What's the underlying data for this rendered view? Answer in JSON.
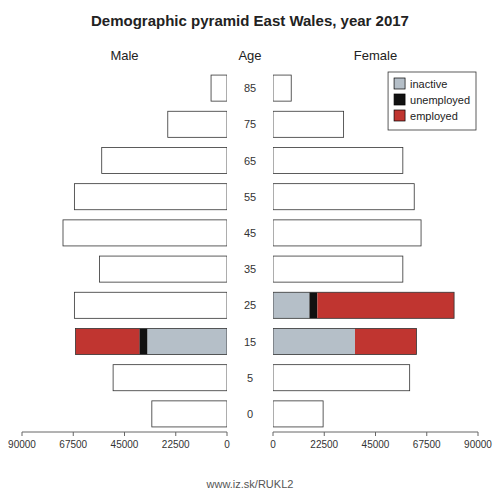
{
  "chart_data": [
    {
      "type": "bar",
      "orientation": "horizontal",
      "stacked": true,
      "title": "Demographic pyramid East Wales, year 2017",
      "subtitle": "Male",
      "ylabel": "Age",
      "annotations": [
        "www.iz.sk/RUKL2"
      ],
      "categories": [
        0,
        5,
        15,
        25,
        35,
        45,
        55,
        65,
        75,
        85
      ],
      "series": [
        {
          "name": "inactive",
          "color": "#b5bfc8",
          "colors": [
            "#ffffff",
            "#ffffff",
            "#b5bfc8",
            "#ffffff",
            "#ffffff",
            "#ffffff",
            "#ffffff",
            "#ffffff",
            "#ffffff",
            "#ffffff"
          ],
          "values": [
            33000,
            50000,
            35000,
            67000,
            56000,
            72000,
            67000,
            55000,
            26000,
            7000
          ]
        },
        {
          "name": "unemployed",
          "color": "#111111",
          "values": [
            0,
            0,
            3500,
            0,
            0,
            0,
            0,
            0,
            0,
            0
          ]
        },
        {
          "name": "employed",
          "color": "#c03530",
          "values": [
            0,
            0,
            28000,
            0,
            0,
            0,
            0,
            0,
            0,
            0
          ]
        }
      ],
      "xlim": [
        90000,
        0
      ],
      "xticks": [
        90000,
        67500,
        45000,
        22500,
        0
      ],
      "grid": false
    },
    {
      "type": "bar",
      "orientation": "horizontal",
      "stacked": true,
      "subtitle": "Female",
      "categories": [
        0,
        5,
        15,
        25,
        35,
        45,
        55,
        65,
        75,
        85
      ],
      "tick_labels": "x",
      "series": [
        {
          "name": "inactive",
          "color": "#b5bfc8",
          "colors": [
            "#ffffff",
            "#ffffff",
            "#b5bfc8",
            "#b5bfc8",
            "#ffffff",
            "#ffffff",
            "#ffffff",
            "#ffffff",
            "#ffffff",
            "#ffffff"
          ],
          "values": [
            22000,
            60000,
            36000,
            16000,
            57000,
            65000,
            62000,
            57000,
            31000,
            8000
          ]
        },
        {
          "name": "unemployed",
          "color": "#111111",
          "values": [
            0,
            0,
            0,
            3500,
            0,
            0,
            0,
            0,
            0,
            0
          ]
        },
        {
          "name": "employed",
          "color": "#c03530",
          "values": [
            0,
            0,
            27000,
            60000,
            0,
            0,
            0,
            0,
            0,
            0
          ]
        }
      ],
      "xlim": [
        0,
        90000
      ],
      "xticks": [
        0,
        22500,
        45000,
        67500,
        90000
      ],
      "legend": "upper right",
      "grid": false
    }
  ]
}
